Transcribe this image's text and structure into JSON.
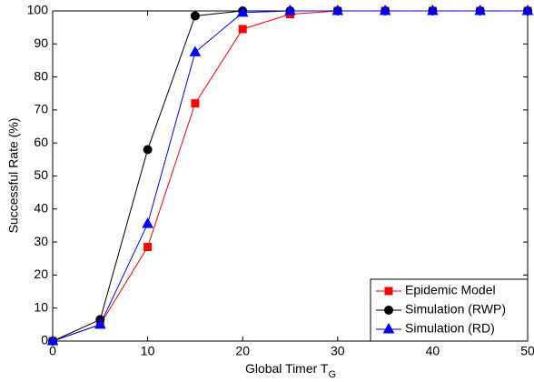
{
  "chart_data": {
    "type": "line",
    "xlabel": "Global Timer T",
    "xlabel_subscript": "G",
    "ylabel": "Successful Rate (%)",
    "x": [
      0,
      5,
      10,
      15,
      20,
      25,
      30,
      35,
      40,
      45,
      50
    ],
    "series": [
      {
        "name": "Epidemic Model",
        "color": "#ff0000",
        "marker": "square",
        "values": [
          0,
          5,
          28.5,
          72,
          94.5,
          99,
          100,
          100,
          100,
          100,
          100
        ]
      },
      {
        "name": "Simulation (RWP)",
        "color": "#000000",
        "marker": "circle",
        "values": [
          0,
          6.5,
          58,
          98.5,
          100,
          100,
          100,
          100,
          100,
          100,
          100
        ]
      },
      {
        "name": "Simulation (RD)",
        "color": "#0000ff",
        "marker": "triangle",
        "values": [
          0,
          5,
          35.5,
          87.5,
          99.5,
          100,
          100,
          100,
          100,
          100,
          100
        ]
      }
    ],
    "xlim": [
      0,
      50
    ],
    "xticks": [
      0,
      10,
      20,
      30,
      40,
      50
    ],
    "ylim": [
      0,
      100
    ],
    "yticks": [
      0,
      10,
      20,
      30,
      40,
      50,
      60,
      70,
      80,
      90,
      100
    ],
    "grid": false,
    "legend": "lower right"
  }
}
